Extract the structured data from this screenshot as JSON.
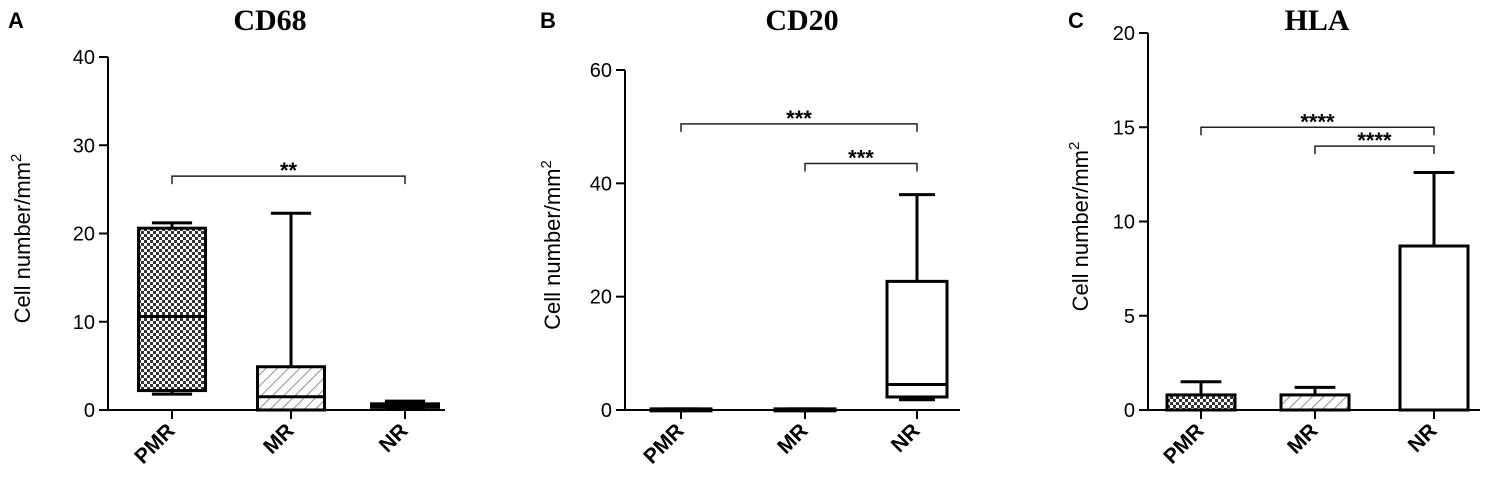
{
  "chart_data": [
    {
      "type": "box",
      "panel": "A",
      "title": "CD68",
      "ylabel": "Cell number/mm",
      "ylabel_sup": "2",
      "ylim": [
        0,
        40
      ],
      "yticks": [
        0,
        10,
        20,
        30,
        40
      ],
      "categories": [
        "PMR",
        "MR",
        "NR"
      ],
      "boxes": [
        {
          "category": "PMR",
          "min": 1.8,
          "q1": 2.2,
          "median": 10.6,
          "q3": 20.6,
          "max": 21.2,
          "fill": "crosshatch"
        },
        {
          "category": "MR",
          "min": 0,
          "q1": 0,
          "median": 1.5,
          "q3": 4.9,
          "max": 22.3,
          "fill": "diagonal"
        },
        {
          "category": "NR",
          "min": 0.2,
          "q1": 0.3,
          "median": 0.5,
          "q3": 0.7,
          "max": 1.0,
          "fill": "white"
        }
      ],
      "significance": [
        {
          "from": "PMR",
          "to": "NR",
          "label": "**",
          "y": 26.5
        }
      ]
    },
    {
      "type": "box",
      "panel": "B",
      "title": "CD20",
      "ylabel": "Cell number/mm",
      "ylabel_sup": "2",
      "ylim": [
        0,
        60
      ],
      "yticks": [
        0,
        20,
        40,
        60
      ],
      "categories": [
        "PMR",
        "MR",
        "NR"
      ],
      "boxes": [
        {
          "category": "PMR",
          "min": 0,
          "q1": 0,
          "median": 0,
          "q3": 0.2,
          "max": 0.2,
          "fill": "crosshatch"
        },
        {
          "category": "MR",
          "min": 0,
          "q1": 0,
          "median": 0,
          "q3": 0.2,
          "max": 0.2,
          "fill": "diagonal"
        },
        {
          "category": "NR",
          "min": 1.8,
          "q1": 2.3,
          "median": 4.5,
          "q3": 22.7,
          "max": 38.0,
          "fill": "white"
        }
      ],
      "significance": [
        {
          "from": "PMR",
          "to": "NR",
          "label": "***",
          "y": 50.5
        },
        {
          "from": "MR",
          "to": "NR",
          "label": "***",
          "y": 43.5
        }
      ]
    },
    {
      "type": "box",
      "panel": "C",
      "title": "HLA",
      "ylabel": "Cell number/mm",
      "ylabel_sup": "2",
      "ylim": [
        0,
        20
      ],
      "yticks": [
        0,
        5,
        10,
        15,
        20
      ],
      "categories": [
        "PMR",
        "MR",
        "NR"
      ],
      "boxes": [
        {
          "category": "PMR",
          "min": 0,
          "q1": 0,
          "median": 0,
          "q3": 0.8,
          "max": 1.5,
          "fill": "crosshatch"
        },
        {
          "category": "MR",
          "min": 0,
          "q1": 0,
          "median": 0,
          "q3": 0.8,
          "max": 1.2,
          "fill": "diagonal"
        },
        {
          "category": "NR",
          "min": 0,
          "q1": 0,
          "median": 0,
          "q3": 8.7,
          "max": 12.6,
          "fill": "white"
        }
      ],
      "significance": [
        {
          "from": "PMR",
          "to": "NR",
          "label": "****",
          "y": 15.0
        },
        {
          "from": "MR",
          "to": "NR",
          "label": "****",
          "y": 14.0
        }
      ]
    }
  ]
}
